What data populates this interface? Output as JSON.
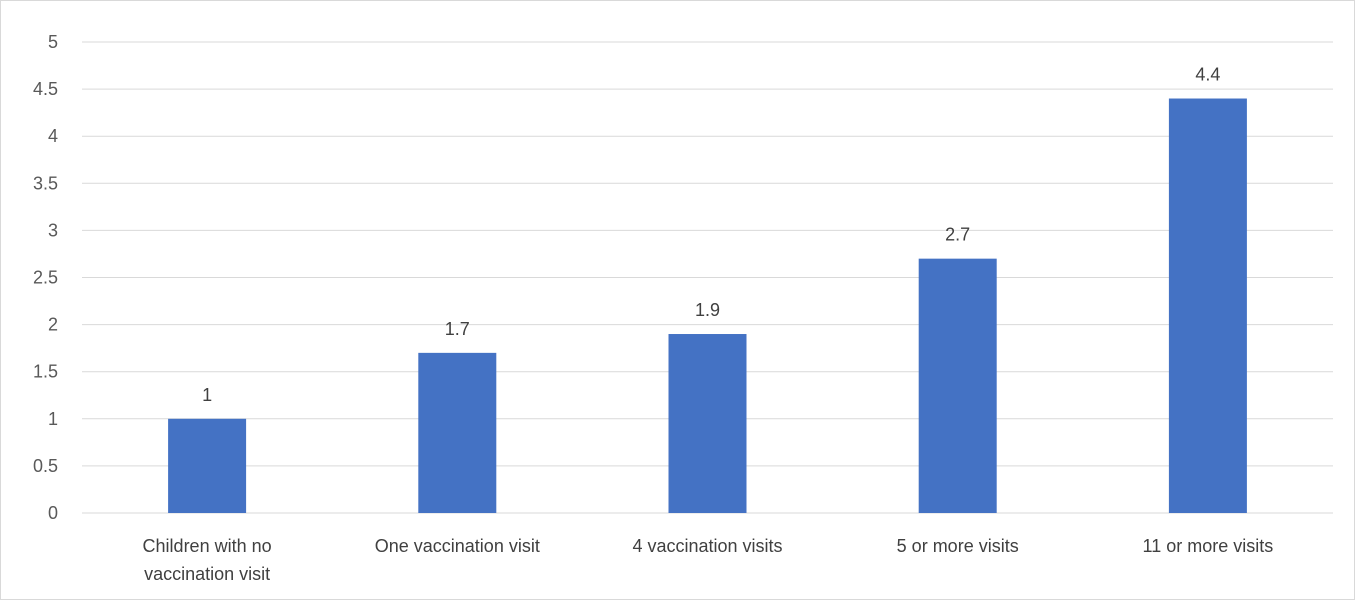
{
  "chart_data": {
    "type": "bar",
    "categories": [
      [
        "Children with no",
        "vaccination visit"
      ],
      [
        "One vaccination visit"
      ],
      [
        "4 vaccination visits"
      ],
      [
        "5 or more visits"
      ],
      [
        "11 or more visits"
      ]
    ],
    "values": [
      1,
      1.7,
      1.9,
      2.7,
      4.4
    ],
    "data_labels": [
      "1",
      "1.7",
      "1.9",
      "2.7",
      "4.4"
    ],
    "yticks": [
      "0",
      "0.5",
      "1",
      "1.5",
      "2",
      "2.5",
      "3",
      "3.5",
      "4",
      "4.5",
      "5"
    ],
    "ylim": [
      0,
      5
    ],
    "grid": true,
    "bar_color": "#4472c4",
    "title": "",
    "xlabel": "",
    "ylabel": ""
  }
}
